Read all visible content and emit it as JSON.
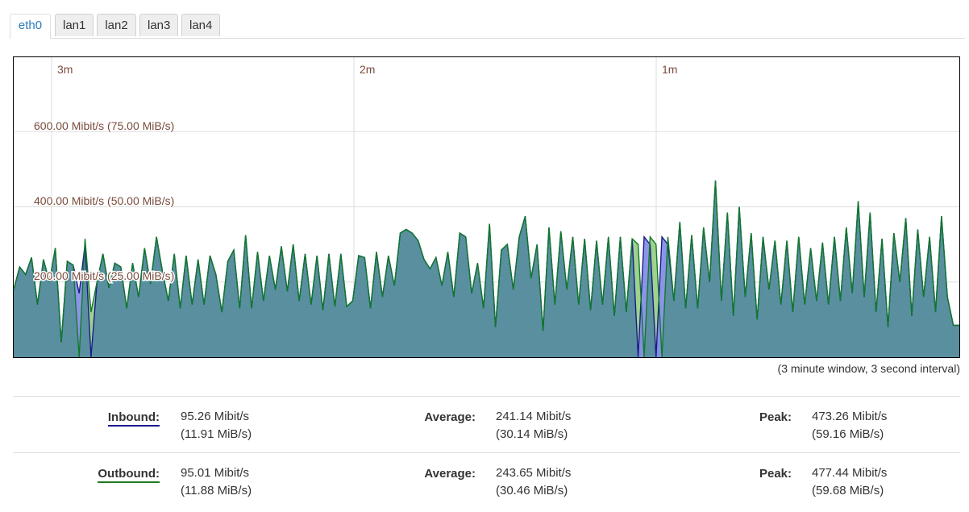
{
  "tabs": [
    {
      "label": "eth0",
      "active": true
    },
    {
      "label": "lan1",
      "active": false
    },
    {
      "label": "lan2",
      "active": false
    },
    {
      "label": "lan3",
      "active": false
    },
    {
      "label": "lan4",
      "active": false
    }
  ],
  "graph": {
    "time_labels": [
      "3m",
      "2m",
      "1m"
    ],
    "y_labels": [
      "600.00 Mibit/s (75.00 MiB/s)",
      "400.00 Mibit/s (50.00 MiB/s)",
      "200.00 Mibit/s (25.00 MiB/s)"
    ],
    "note": "(3 minute window, 3 second interval)",
    "colors": {
      "inbound_fill": "#5a8fa0",
      "inbound_line": "#1a1a8c",
      "outbound_line": "#107a2a",
      "inbound_only": "#7f88e6",
      "outbound_only": "#9fd28c"
    }
  },
  "chart_data": {
    "type": "area",
    "unit": "Mibit/s",
    "ylim": [
      0,
      800
    ],
    "series": [
      {
        "name": "Inbound",
        "values": [
          180,
          240,
          220,
          265,
          140,
          260,
          200,
          290,
          40,
          255,
          245,
          170,
          300,
          0,
          200,
          275,
          185,
          250,
          240,
          130,
          250,
          160,
          290,
          195,
          320,
          230,
          150,
          275,
          130,
          270,
          140,
          260,
          140,
          270,
          220,
          120,
          255,
          285,
          130,
          325,
          130,
          280,
          150,
          270,
          180,
          295,
          175,
          300,
          150,
          275,
          140,
          270,
          125,
          275,
          135,
          275,
          135,
          150,
          270,
          265,
          130,
          280,
          160,
          270,
          190,
          330,
          340,
          330,
          310,
          260,
          235,
          265,
          190,
          280,
          160,
          330,
          320,
          170,
          250,
          130,
          355,
          80,
          285,
          300,
          180,
          320,
          375,
          210,
          300,
          70,
          345,
          140,
          335,
          180,
          320,
          140,
          315,
          125,
          310,
          140,
          320,
          110,
          320,
          120,
          315,
          0,
          320,
          300,
          0,
          320,
          300,
          150,
          360,
          130,
          325,
          130,
          345,
          200,
          470,
          150,
          385,
          110,
          400,
          160,
          330,
          100,
          320,
          180,
          310,
          140,
          310,
          120,
          320,
          140,
          290,
          150,
          305,
          140,
          320,
          150,
          345,
          170,
          415,
          160,
          385,
          120,
          315,
          80,
          330,
          200,
          370,
          110,
          340,
          160,
          320,
          120,
          375,
          160,
          85,
          85
        ]
      },
      {
        "name": "Outbound",
        "values": [
          180,
          240,
          220,
          265,
          140,
          260,
          200,
          290,
          40,
          255,
          245,
          0,
          315,
          120,
          200,
          275,
          185,
          250,
          240,
          130,
          250,
          160,
          290,
          195,
          320,
          230,
          150,
          275,
          130,
          270,
          140,
          260,
          140,
          270,
          220,
          120,
          255,
          285,
          130,
          325,
          130,
          280,
          150,
          270,
          180,
          295,
          175,
          300,
          150,
          275,
          140,
          270,
          125,
          275,
          135,
          275,
          135,
          150,
          270,
          265,
          130,
          280,
          160,
          270,
          190,
          330,
          340,
          330,
          310,
          260,
          235,
          265,
          190,
          280,
          160,
          330,
          320,
          170,
          250,
          130,
          355,
          80,
          285,
          300,
          180,
          320,
          375,
          210,
          300,
          70,
          345,
          140,
          335,
          180,
          320,
          140,
          315,
          125,
          310,
          140,
          320,
          110,
          320,
          120,
          315,
          300,
          0,
          320,
          300,
          0,
          320,
          150,
          360,
          130,
          325,
          130,
          345,
          200,
          470,
          150,
          385,
          110,
          400,
          160,
          330,
          100,
          320,
          180,
          310,
          140,
          310,
          120,
          320,
          140,
          290,
          150,
          305,
          140,
          320,
          150,
          345,
          170,
          415,
          160,
          385,
          120,
          315,
          80,
          330,
          200,
          370,
          110,
          340,
          160,
          320,
          120,
          375,
          160,
          85,
          85
        ]
      }
    ]
  },
  "stats": {
    "inbound": {
      "label": "Inbound:",
      "current": "95.26 Mibit/s",
      "current_b": "(11.91 MiB/s)",
      "avg_label": "Average:",
      "average": "241.14 Mibit/s",
      "average_b": "(30.14 MiB/s)",
      "peak_label": "Peak:",
      "peak": "473.26 Mibit/s",
      "peak_b": "(59.16 MiB/s)"
    },
    "outbound": {
      "label": "Outbound:",
      "current": "95.01 Mibit/s",
      "current_b": "(11.88 MiB/s)",
      "avg_label": "Average:",
      "average": "243.65 Mibit/s",
      "average_b": "(30.46 MiB/s)",
      "peak_label": "Peak:",
      "peak": "477.44 Mibit/s",
      "peak_b": "(59.68 MiB/s)"
    }
  }
}
